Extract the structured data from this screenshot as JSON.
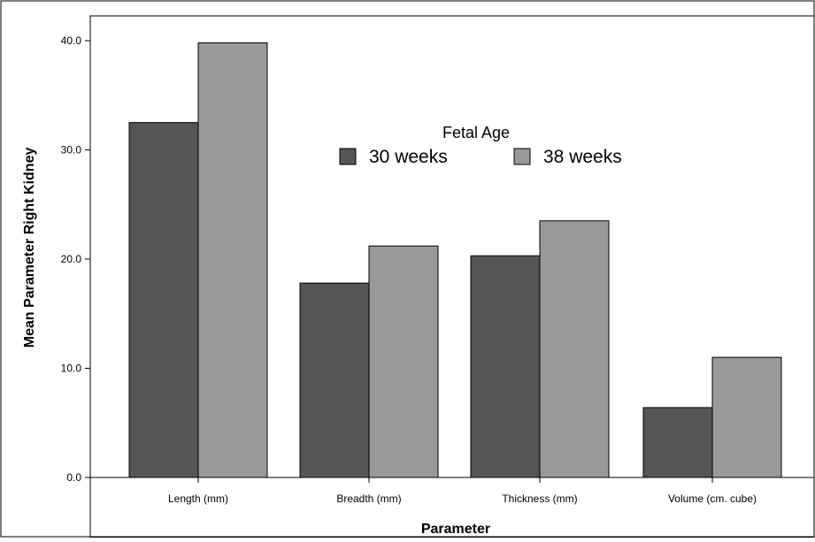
{
  "colors": {
    "series_30": "#555555",
    "series_38": "#999999",
    "frame": "#000000",
    "background": "#ffffff"
  },
  "chart_data": {
    "type": "bar",
    "xlabel": "Parameter",
    "ylabel": "Mean Parameter Right Kidney",
    "categories": [
      "Length (mm)",
      "Breadth (mm)",
      "Thickness (mm)",
      "Volume (cm. cube)"
    ],
    "series": [
      {
        "name": "30 weeks",
        "values": [
          32.5,
          17.8,
          20.3,
          6.4
        ]
      },
      {
        "name": "38 weeks",
        "values": [
          39.8,
          21.2,
          23.5,
          11.0
        ]
      }
    ],
    "ylim": [
      0,
      40
    ],
    "yticks": [
      "0.0",
      "10.0",
      "20.0",
      "30.0",
      "40.0"
    ],
    "legend": {
      "title": "Fetal Age",
      "placement": "top-center"
    },
    "grid": false
  }
}
